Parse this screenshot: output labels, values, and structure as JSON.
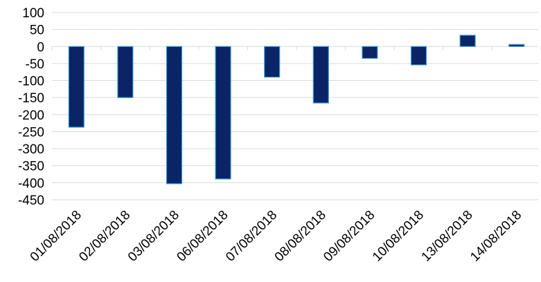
{
  "chart_data": {
    "type": "bar",
    "title": "",
    "xlabel": "",
    "ylabel": "",
    "categories": [
      "01/08/2018",
      "02/08/2018",
      "03/08/2018",
      "06/08/2018",
      "07/08/2018",
      "08/08/2018",
      "09/08/2018",
      "10/08/2018",
      "13/08/2018",
      "14/08/2018"
    ],
    "values": [
      -237,
      -150,
      -403,
      -389,
      -90,
      -166,
      -35,
      -54,
      33,
      6
    ],
    "ylim": [
      -450,
      100
    ],
    "yticks": [
      "100",
      "50",
      "0",
      "-50",
      "-100",
      "-150",
      "-200",
      "-250",
      "-300",
      "-350",
      "-400",
      "-450"
    ],
    "grid": true,
    "legend": "none",
    "colors": {
      "bar_fill": "#0a2466",
      "bar_edge": "#3a9fd8",
      "grid": "#d9d9d9"
    }
  }
}
